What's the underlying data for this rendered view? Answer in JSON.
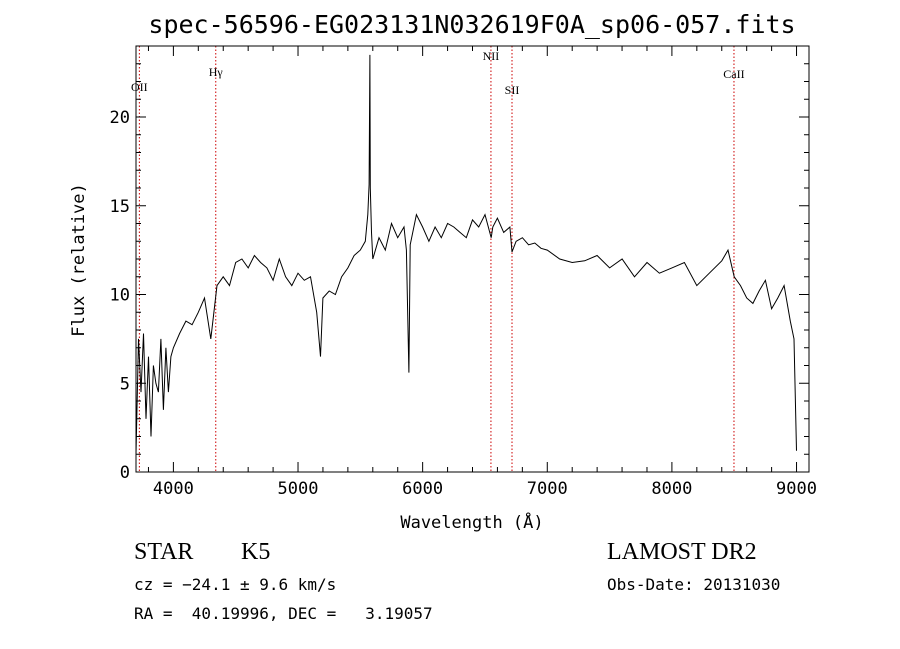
{
  "chart_data": {
    "type": "line",
    "title": "spec-56596-EG023131N032619F0A_sp06-057.fits",
    "xlabel": "Wavelength (Å)",
    "ylabel": "Flux (relative)",
    "xlim": [
      3700,
      9100
    ],
    "ylim": [
      0,
      24
    ],
    "xticks": [
      4000,
      5000,
      6000,
      7000,
      8000,
      9000
    ],
    "yticks": [
      0,
      5,
      10,
      15,
      20
    ],
    "grid": false,
    "line_color": "#000000",
    "marker_color": "#cc0000",
    "spectrum": {
      "x": [
        3700,
        3720,
        3740,
        3760,
        3780,
        3800,
        3820,
        3840,
        3860,
        3880,
        3900,
        3920,
        3940,
        3960,
        3980,
        4000,
        4050,
        4100,
        4150,
        4200,
        4250,
        4300,
        4350,
        4400,
        4450,
        4500,
        4550,
        4600,
        4650,
        4700,
        4750,
        4800,
        4850,
        4900,
        4950,
        5000,
        5050,
        5100,
        5150,
        5180,
        5200,
        5250,
        5300,
        5350,
        5400,
        5450,
        5500,
        5540,
        5560,
        5570,
        5577,
        5580,
        5590,
        5600,
        5650,
        5700,
        5750,
        5800,
        5850,
        5870,
        5890,
        5900,
        5950,
        6000,
        6050,
        6100,
        6150,
        6200,
        6250,
        6300,
        6350,
        6400,
        6450,
        6500,
        6550,
        6563,
        6600,
        6650,
        6700,
        6717,
        6750,
        6800,
        6850,
        6900,
        6950,
        7000,
        7100,
        7200,
        7300,
        7400,
        7500,
        7600,
        7700,
        7800,
        7900,
        8000,
        8100,
        8200,
        8300,
        8400,
        8450,
        8500,
        8550,
        8600,
        8650,
        8700,
        8750,
        8800,
        8850,
        8900,
        8950,
        8980,
        9000
      ],
      "y": [
        1.0,
        7.5,
        4.5,
        7.8,
        3.0,
        6.5,
        2.0,
        6.0,
        5.0,
        4.5,
        7.5,
        3.5,
        7.0,
        4.5,
        6.5,
        7.0,
        7.8,
        8.5,
        8.3,
        9.0,
        9.8,
        7.5,
        10.5,
        11.0,
        10.5,
        11.8,
        12.0,
        11.5,
        12.2,
        11.8,
        11.5,
        10.8,
        12.0,
        11.0,
        10.5,
        11.2,
        10.8,
        11.0,
        9.0,
        6.5,
        9.8,
        10.2,
        10.0,
        11.0,
        11.5,
        12.2,
        12.5,
        13.0,
        14.5,
        16.2,
        23.5,
        16.0,
        13.5,
        12.0,
        13.2,
        12.5,
        14.0,
        13.2,
        13.8,
        12.5,
        5.6,
        12.8,
        14.5,
        13.8,
        13.0,
        13.8,
        13.2,
        14.0,
        13.8,
        13.5,
        13.2,
        14.2,
        13.8,
        14.5,
        13.2,
        13.8,
        14.3,
        13.5,
        13.8,
        12.4,
        13.0,
        13.2,
        12.8,
        12.9,
        12.6,
        12.5,
        12.0,
        11.8,
        11.9,
        12.2,
        11.5,
        12.0,
        11.0,
        11.8,
        11.2,
        11.5,
        11.8,
        10.5,
        11.2,
        11.9,
        12.5,
        11.0,
        10.5,
        9.8,
        9.5,
        10.2,
        10.8,
        9.2,
        9.8,
        10.5,
        8.5,
        7.5,
        1.2
      ]
    },
    "emission_lines": [
      {
        "label": "OII",
        "wavelength": 3727
      },
      {
        "label": "Hγ",
        "wavelength": 4340
      },
      {
        "label": "NII",
        "wavelength": 6548
      },
      {
        "label": "SII",
        "wavelength": 6717
      },
      {
        "label": "CaII",
        "wavelength": 8498
      }
    ]
  },
  "info": {
    "class": "STAR",
    "subclass": "K5",
    "survey": "LAMOST DR2",
    "cz": "cz = −24.1 ± 9.6 km/s",
    "obs_date": "Obs-Date: 20131030",
    "coords": "RA =  40.19996, DEC =   3.19057"
  }
}
